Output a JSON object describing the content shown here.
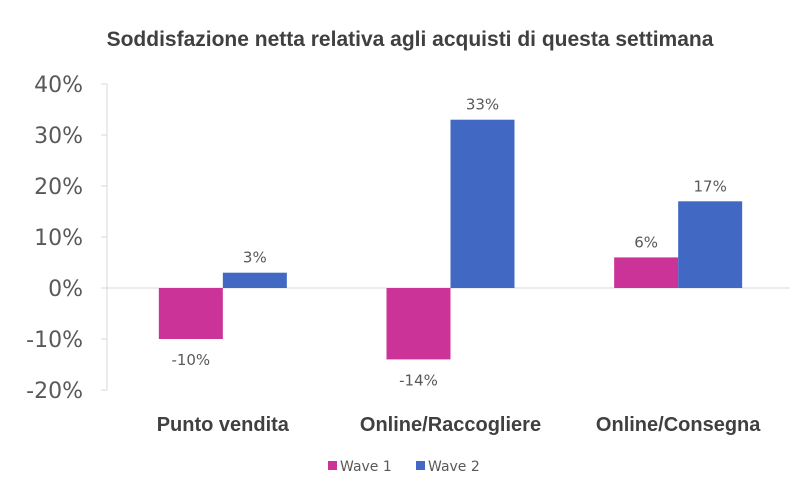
{
  "chart_data": {
    "type": "bar",
    "title": "Soddisfazione netta relativa agli acquisti di questa settimana",
    "categories": [
      "Punto vendita",
      "Online/Raccogliere",
      "Online/Consegna"
    ],
    "series": [
      {
        "name": "Wave 1",
        "values": [
          -10,
          -14,
          6
        ],
        "labels": [
          "-10%",
          "-14%",
          "6%"
        ],
        "color": "#CC3399"
      },
      {
        "name": "Wave 2",
        "values": [
          3,
          33,
          17
        ],
        "labels": [
          "3%",
          "33%",
          "17%"
        ],
        "color": "#4169C4"
      }
    ],
    "ylim": [
      -20,
      40
    ],
    "yticks": [
      40,
      30,
      20,
      10,
      0,
      -10,
      -20
    ],
    "ytick_labels": [
      "40%",
      "30%",
      "20%",
      "10%",
      "0%",
      "-10%",
      "-20%"
    ],
    "legend_position": "bottom",
    "grid": false
  }
}
